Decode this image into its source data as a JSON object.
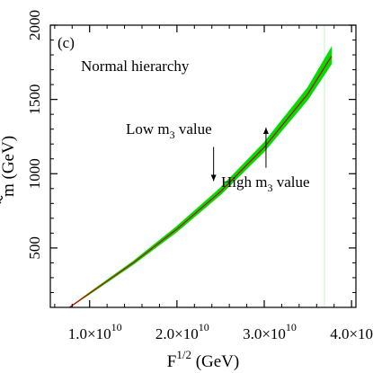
{
  "chart_data": {
    "type": "line",
    "panel_label": "(c)",
    "title": "",
    "xlabel": {
      "base": "F",
      "sup": "1/2",
      "unit": " (GeV)"
    },
    "ylabel": {
      "base": "m",
      "unit": " (GeV)"
    },
    "xlim": [
      5500000000,
      40500000000
    ],
    "ylim": [
      100,
      2000
    ],
    "x_ticks": [
      {
        "value": 10000000000,
        "mantissa": "1.0×10",
        "exp": "10"
      },
      {
        "value": 20000000000,
        "mantissa": "2.0×10",
        "exp": "10"
      },
      {
        "value": 30000000000,
        "mantissa": "3.0×10",
        "exp": "10"
      },
      {
        "value": 40000000000,
        "mantissa": "4.0×10",
        "exp": "10"
      }
    ],
    "y_ticks": [
      {
        "value": 500,
        "label": "500"
      },
      {
        "value": 1000,
        "label": "1000"
      },
      {
        "value": 1500,
        "label": "1500"
      },
      {
        "value": 2000,
        "label": "2000"
      }
    ],
    "series": [
      {
        "color": "#00dd00",
        "x": [
          7700000000,
          10000000000,
          15000000000,
          20000000000,
          25000000000,
          30000000000,
          35000000000,
          37700000000
        ],
        "y_low": [
          100,
          190,
          390,
          610,
          860,
          1150,
          1500,
          1740
        ],
        "y_high": [
          100,
          200,
          410,
          645,
          905,
          1210,
          1580,
          1850
        ]
      },
      {
        "color": "#cc0000",
        "x": [
          7700000000,
          10000000000,
          15000000000,
          20000000000,
          25000000000,
          30000000000,
          35000000000,
          37700000000
        ],
        "y": [
          100,
          195,
          400,
          627,
          880,
          1178,
          1538,
          1790
        ]
      }
    ],
    "vertical_line": {
      "x": 36900000000,
      "color": "#c8f0c8"
    },
    "hierarchy_label": "Normal hierarchy",
    "annotations": [
      {
        "base": "Low m",
        "sub": "3",
        "rest": " value",
        "arrow_from": [
          24200000000,
          1180
        ],
        "arrow_to": [
          24200000000,
          950
        ]
      },
      {
        "base": "High m",
        "sub": "3",
        "rest": " value",
        "arrow_from": [
          30200000000,
          1040
        ],
        "arrow_to": [
          30200000000,
          1310
        ]
      }
    ],
    "grid": false
  }
}
